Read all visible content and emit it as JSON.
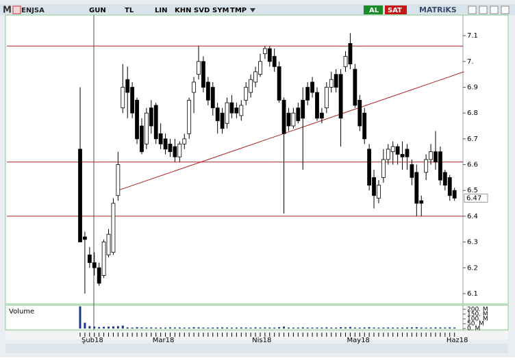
{
  "toolbar": {
    "logo": "M",
    "symbol": "ENJSA",
    "buttons": [
      "GUN",
      "TL",
      "LIN",
      "KHN",
      "SVD",
      "SYM",
      "TMP"
    ],
    "buy": "AL",
    "sell": "SAT",
    "brand": "MATRiKS"
  },
  "chart_data": {
    "type": "candlestick",
    "categories": [
      "Şub18",
      null,
      null,
      null,
      null,
      null,
      null,
      null,
      null,
      null,
      null,
      null,
      null,
      null,
      null,
      "Mar18",
      null,
      null,
      null,
      null,
      null,
      null,
      null,
      null,
      null,
      null,
      null,
      null,
      null,
      null,
      null,
      null,
      null,
      null,
      null,
      null,
      "Nis18",
      null,
      null,
      null,
      null,
      null,
      null,
      null,
      null,
      null,
      null,
      null,
      null,
      null,
      null,
      null,
      null,
      null,
      null,
      null,
      "May18",
      null,
      null,
      null,
      null,
      null,
      null,
      null,
      null,
      null,
      null,
      null,
      null,
      null,
      null,
      null,
      null,
      null,
      null,
      null,
      null,
      "Haz18",
      null,
      null
    ],
    "ohlc": [
      [
        6.66,
        6.9,
        6.3,
        6.3
      ],
      [
        6.32,
        6.34,
        6.1,
        6.31
      ],
      [
        6.25,
        6.28,
        6.2,
        6.22
      ],
      [
        6.22,
        6.26,
        6.17,
        6.2
      ],
      [
        6.2,
        6.22,
        6.13,
        6.14
      ],
      [
        6.17,
        6.31,
        6.16,
        6.3
      ],
      [
        6.25,
        6.35,
        6.24,
        6.33
      ],
      [
        6.26,
        6.47,
        6.25,
        6.45
      ],
      [
        6.48,
        6.65,
        6.46,
        6.6
      ],
      [
        6.82,
        6.99,
        6.8,
        6.9
      ],
      [
        6.93,
        6.98,
        6.78,
        6.88
      ],
      [
        6.9,
        6.92,
        6.78,
        6.8
      ],
      [
        6.85,
        6.86,
        6.68,
        6.7
      ],
      [
        6.75,
        6.78,
        6.64,
        6.65
      ],
      [
        6.68,
        6.82,
        6.66,
        6.8
      ],
      [
        6.82,
        6.85,
        6.72,
        6.75
      ],
      [
        6.83,
        6.84,
        6.68,
        6.7
      ],
      [
        6.72,
        6.76,
        6.66,
        6.68
      ],
      [
        6.7,
        6.72,
        6.64,
        6.66
      ],
      [
        6.68,
        6.7,
        6.63,
        6.65
      ],
      [
        6.67,
        6.7,
        6.61,
        6.63
      ],
      [
        6.63,
        6.69,
        6.61,
        6.68
      ],
      [
        6.68,
        6.72,
        6.66,
        6.7
      ],
      [
        6.72,
        6.86,
        6.7,
        6.85
      ],
      [
        6.88,
        6.94,
        6.8,
        6.92
      ],
      [
        6.95,
        7.06,
        6.93,
        7.0
      ],
      [
        7.0,
        7.02,
        6.88,
        6.9
      ],
      [
        6.92,
        6.94,
        6.83,
        6.85
      ],
      [
        6.9,
        6.92,
        6.79,
        6.82
      ],
      [
        6.82,
        6.84,
        6.72,
        6.77
      ],
      [
        6.8,
        6.82,
        6.72,
        6.74
      ],
      [
        6.76,
        6.86,
        6.74,
        6.84
      ],
      [
        6.84,
        6.87,
        6.78,
        6.8
      ],
      [
        6.82,
        6.84,
        6.78,
        6.8
      ],
      [
        6.79,
        6.85,
        6.77,
        6.83
      ],
      [
        6.85,
        6.92,
        6.83,
        6.9
      ],
      [
        6.88,
        6.95,
        6.86,
        6.93
      ],
      [
        6.92,
        6.98,
        6.9,
        6.96
      ],
      [
        6.95,
        7.03,
        6.94,
        7.0
      ],
      [
        7.03,
        7.06,
        7.01,
        7.05
      ],
      [
        7.05,
        7.06,
        6.98,
        7.0
      ],
      [
        7.02,
        7.05,
        6.96,
        6.98
      ],
      [
        6.98,
        7.0,
        6.84,
        6.85
      ],
      [
        6.85,
        6.86,
        6.41,
        6.72
      ],
      [
        6.8,
        6.82,
        6.73,
        6.75
      ],
      [
        6.75,
        6.82,
        6.74,
        6.8
      ],
      [
        6.82,
        6.84,
        6.76,
        6.77
      ],
      [
        6.85,
        6.9,
        6.58,
        6.78
      ],
      [
        6.9,
        6.92,
        6.83,
        6.85
      ],
      [
        6.92,
        6.94,
        6.86,
        6.88
      ],
      [
        6.88,
        6.9,
        6.77,
        6.78
      ],
      [
        6.8,
        6.82,
        6.76,
        6.78
      ],
      [
        6.82,
        6.92,
        6.8,
        6.9
      ],
      [
        6.9,
        6.96,
        6.88,
        6.93
      ],
      [
        6.95,
        6.97,
        6.88,
        6.9
      ],
      [
        6.95,
        6.97,
        6.67,
        6.78
      ],
      [
        6.98,
        7.04,
        6.96,
        7.02
      ],
      [
        7.07,
        7.11,
        6.97,
        6.99
      ],
      [
        6.97,
        6.99,
        6.82,
        6.83
      ],
      [
        6.85,
        6.87,
        6.73,
        6.75
      ],
      [
        6.8,
        6.82,
        6.68,
        6.7
      ],
      [
        6.66,
        6.68,
        6.5,
        6.52
      ],
      [
        6.55,
        6.58,
        6.43,
        6.48
      ],
      [
        6.47,
        6.54,
        6.45,
        6.52
      ],
      [
        6.55,
        6.66,
        6.53,
        6.62
      ],
      [
        6.62,
        6.68,
        6.6,
        6.66
      ],
      [
        6.65,
        6.69,
        6.6,
        6.67
      ],
      [
        6.67,
        6.68,
        6.6,
        6.64
      ],
      [
        6.64,
        6.69,
        6.58,
        6.63
      ],
      [
        6.66,
        6.68,
        6.58,
        6.63
      ],
      [
        6.6,
        6.62,
        6.52,
        6.55
      ],
      [
        6.57,
        6.6,
        6.4,
        6.45
      ],
      [
        6.46,
        6.48,
        6.4,
        6.45
      ],
      [
        6.57,
        6.64,
        6.54,
        6.62
      ],
      [
        6.62,
        6.68,
        6.6,
        6.65
      ],
      [
        6.65,
        6.73,
        6.58,
        6.61
      ],
      [
        6.65,
        6.67,
        6.52,
        6.54
      ],
      [
        6.57,
        6.58,
        6.5,
        6.52
      ],
      [
        6.55,
        6.56,
        6.46,
        6.48
      ],
      [
        6.5,
        6.51,
        6.46,
        6.47
      ]
    ],
    "ylim": [
      6.06,
      7.18
    ],
    "yticks": [
      6.1,
      6.2,
      6.3,
      6.4,
      6.5,
      6.6,
      6.7,
      6.8,
      6.9,
      {
        "value": 7,
        "label": "7."
      },
      7.1
    ],
    "last_price": 6.47,
    "hlines": [
      7.06,
      6.61,
      6.4
    ],
    "trendline": {
      "x": [
        8,
        81
      ],
      "y": [
        6.5,
        6.96
      ]
    },
    "volume_label": "Volume",
    "volume": [
      230,
      60,
      25,
      20,
      15,
      18,
      20,
      22,
      25,
      30,
      12,
      10,
      14,
      12,
      10,
      11,
      9,
      10,
      9,
      12,
      10,
      11,
      9,
      10,
      14,
      12,
      10,
      9,
      10,
      11,
      12,
      10,
      9,
      10,
      11,
      10,
      9,
      12,
      10,
      11,
      10,
      9,
      14,
      20,
      10,
      9,
      10,
      12,
      10,
      9,
      11,
      10,
      12,
      10,
      9,
      14,
      12,
      16,
      10,
      9,
      11,
      14,
      10,
      9,
      10,
      11,
      10,
      9,
      10,
      11,
      12,
      14,
      10,
      9,
      10,
      12,
      11,
      10,
      12,
      10
    ],
    "volume_ylim": [
      0,
      220
    ],
    "volume_ticks": [
      {
        "value": 0,
        "label": "0. M"
      },
      {
        "value": 50,
        "label": "50. M"
      },
      {
        "value": 100,
        "label": "100. M"
      },
      {
        "value": 150,
        "label": "150. M"
      },
      {
        "value": 200,
        "label": "200. M"
      }
    ]
  }
}
